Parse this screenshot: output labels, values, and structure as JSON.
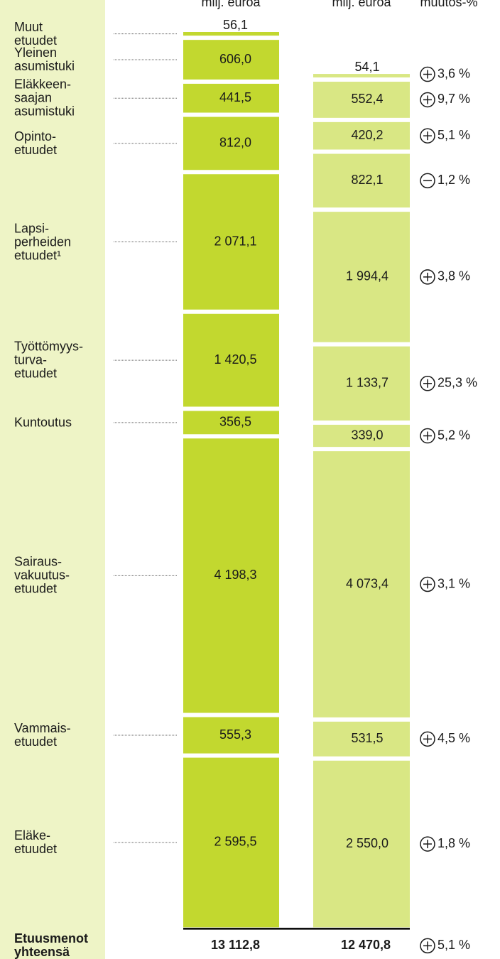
{
  "chart_data": {
    "type": "stacked_column",
    "headers": [
      "milj. euroa",
      "milj. euroa",
      "muutos-%"
    ],
    "categories": [
      "Muut\netuudet",
      "Yleinen\nasumistuki",
      "Eläkkeen-\nsaajan\nasumistuki",
      "Opinto-\netuudet",
      "Lapsi-\nperheiden\netuudet¹",
      "Työttömyys-\nturva-\netuudet",
      "Kuntoutus",
      "Sairaus-\nvakuutus-\netuudet",
      "Vammais-\netuudet",
      "Eläke-\netuudet"
    ],
    "series": [
      {
        "color": "#c2d82f",
        "values": [
          56.1,
          606.0,
          441.5,
          812.0,
          2071.1,
          1420.5,
          356.5,
          4198.3,
          555.3,
          2595.5
        ],
        "value_labels": [
          "56,1",
          "606,0",
          "441,5",
          "812,0",
          "2 071,1",
          "1 420,5",
          "356,5",
          "4 198,3",
          "555,3",
          "2 595,5"
        ]
      },
      {
        "color": "#d9e784",
        "values": [
          54.1,
          552.4,
          420.2,
          822.1,
          1994.4,
          1133.7,
          339.0,
          4073.4,
          531.5,
          2550.0
        ],
        "value_labels": [
          "54,1",
          "552,4",
          "420,2",
          "822,1",
          "1 994,4",
          "1 133,7",
          "339,0",
          "4 073,4",
          "531,5",
          "2 550,0"
        ]
      }
    ],
    "change": {
      "values": [
        3.6,
        9.7,
        5.1,
        -1.2,
        3.8,
        25.3,
        5.2,
        3.1,
        4.5,
        1.8
      ],
      "value_labels": [
        "3,6 %",
        "9,7 %",
        "5,1 %",
        "1,2 %",
        "3,8 %",
        "25,3 %",
        "5,2 %",
        "3,1 %",
        "4,5 %",
        "1,8 %"
      ]
    },
    "total_label": "Etuusmenot\nyhteensä",
    "totals": {
      "values": [
        13112.8,
        12470.8
      ],
      "value_labels": [
        "13 112,8",
        "12 470,8"
      ]
    },
    "change_total": {
      "value": 5.1,
      "label": "5,1 %"
    }
  }
}
